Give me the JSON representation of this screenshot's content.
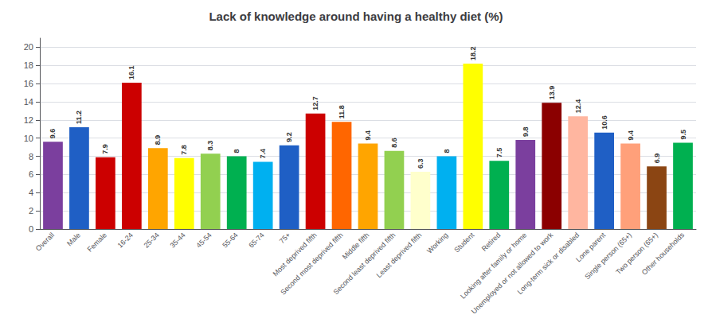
{
  "chart_data": {
    "type": "bar",
    "title": "Lack of knowledge around having a healthy diet (%)",
    "categories": [
      "Overall",
      "Male",
      "Female",
      "16-24",
      "25-34",
      "35-44",
      "45-54",
      "55-64",
      "65-74",
      "75+",
      "Most deprived fifth",
      "Second most deprived fifth",
      "Middle fifth",
      "Second least deprived fifth",
      "Least deprived fifth",
      "Working",
      "Student",
      "Retired",
      "Looking after family or home",
      "Unemployed or not allowed to work",
      "Long-term sick or disabled",
      "Lone parent",
      "Single person (65+)",
      "Two person (65+)",
      "Other households"
    ],
    "values": [
      9.6,
      11.2,
      7.9,
      16.1,
      8.9,
      7.8,
      8.3,
      8.0,
      7.4,
      9.2,
      12.7,
      11.8,
      9.4,
      8.6,
      6.3,
      8.0,
      18.2,
      7.5,
      9.8,
      13.9,
      12.4,
      10.6,
      9.4,
      6.9,
      9.5
    ],
    "colors": [
      "#7B3F9E",
      "#1F5FC5",
      "#CC0000",
      "#CC0000",
      "#FFA500",
      "#FFFF00",
      "#92D050",
      "#00B050",
      "#00B0F0",
      "#1F5FC5",
      "#CC0000",
      "#FF6600",
      "#FFA500",
      "#92D050",
      "#FFFFCC",
      "#00B0F0",
      "#FFFF00",
      "#00B050",
      "#7B3F9E",
      "#8B0000",
      "#FFB6A0",
      "#1F5FC5",
      "#FFA07A",
      "#8B4513",
      "#00B050"
    ],
    "ylim": [
      0,
      21
    ],
    "yticks": [
      0,
      2,
      4,
      6,
      8,
      10,
      12,
      14,
      16,
      18,
      20
    ],
    "grid": true,
    "data_labels": true
  }
}
